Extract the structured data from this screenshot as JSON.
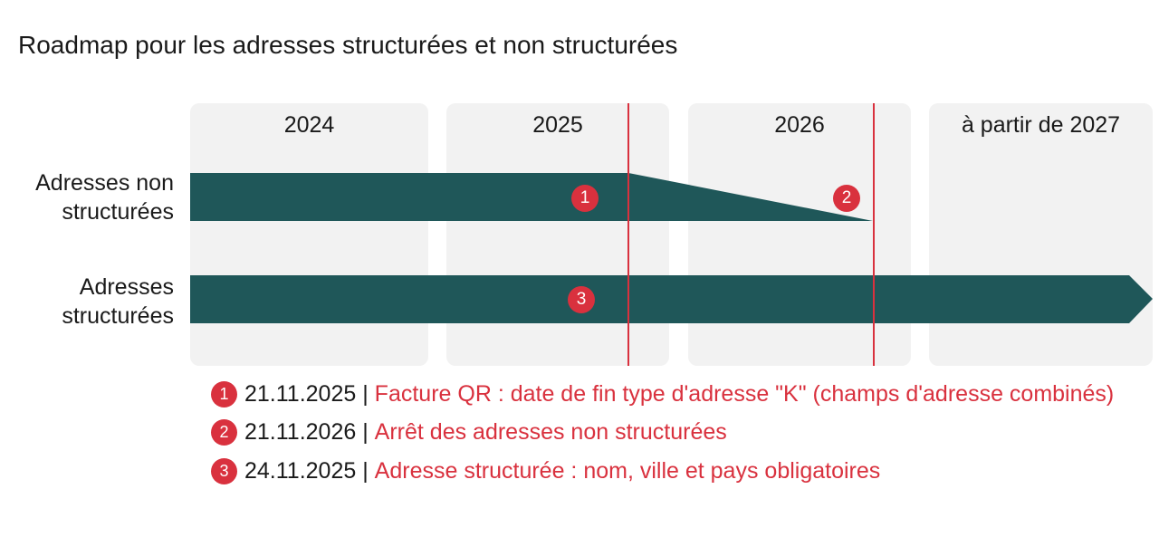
{
  "title": "Roadmap pour les adresses structurées et non structurées",
  "columns": [
    "2024",
    "2025",
    "2026",
    "à partir de 2027"
  ],
  "rows": {
    "unstructured": {
      "line1": "Adresses non",
      "line2": "structurées"
    },
    "structured": {
      "line1": "Adresses",
      "line2": "structurées"
    }
  },
  "markers": [
    "1",
    "2",
    "3"
  ],
  "legend": [
    {
      "num": "1",
      "date": "21.11.2025",
      "sep": " | ",
      "text": "Facture QR : date de fin type d'adresse \"K\" (champs d'adresse combinés)"
    },
    {
      "num": "2",
      "date": "21.11.2026",
      "sep": " | ",
      "text": "Arrêt des adresses non structurées"
    },
    {
      "num": "3",
      "date": "24.11.2025",
      "sep": " | ",
      "text": "Adresse structurée : nom, ville et pays obligatoires"
    }
  ],
  "colors": {
    "bar": "#1f5759",
    "accent": "#d9313e",
    "column_bg": "#f2f2f2"
  }
}
